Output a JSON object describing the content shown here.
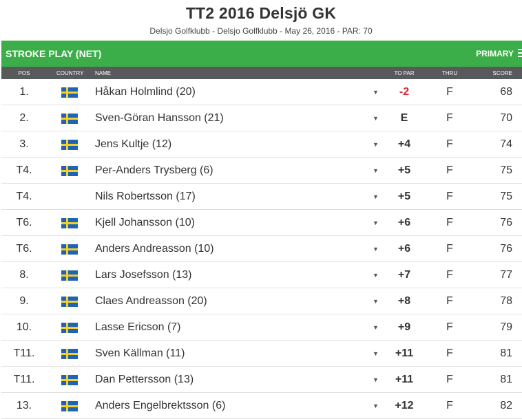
{
  "header": {
    "title": "TT2 2016 Delsjö GK",
    "subtitle": "Delsjo Golfklubb - Delsjo Golfklubb - May 26, 2016 - PAR: 70"
  },
  "bar": {
    "left_label": "STROKE PLAY (NET)",
    "right_label": "PRIMARY",
    "color": "#3cae49"
  },
  "columns": {
    "pos": "POS",
    "country": "COUNTRY",
    "name": "NAME",
    "topar": "TO PAR",
    "thru": "THRU",
    "score": "SCORE"
  },
  "rows": [
    {
      "pos": "1.",
      "flag": true,
      "name": "Håkan Holmlind (20)",
      "topar": "-2",
      "thru": "F",
      "score": "68"
    },
    {
      "pos": "2.",
      "flag": true,
      "name": "Sven-Göran Hansson (21)",
      "topar": "E",
      "thru": "F",
      "score": "70"
    },
    {
      "pos": "3.",
      "flag": true,
      "name": "Jens Kultje (12)",
      "topar": "+4",
      "thru": "F",
      "score": "74"
    },
    {
      "pos": "T4.",
      "flag": true,
      "name": "Per-Anders Trysberg (6)",
      "topar": "+5",
      "thru": "F",
      "score": "75"
    },
    {
      "pos": "T4.",
      "flag": false,
      "name": "Nils Robertsson (17)",
      "topar": "+5",
      "thru": "F",
      "score": "75"
    },
    {
      "pos": "T6.",
      "flag": true,
      "name": "Kjell Johansson (10)",
      "topar": "+6",
      "thru": "F",
      "score": "76"
    },
    {
      "pos": "T6.",
      "flag": true,
      "name": "Anders Andreasson (10)",
      "topar": "+6",
      "thru": "F",
      "score": "76"
    },
    {
      "pos": "8.",
      "flag": true,
      "name": "Lars Josefsson (13)",
      "topar": "+7",
      "thru": "F",
      "score": "77"
    },
    {
      "pos": "9.",
      "flag": true,
      "name": "Claes Andreasson (20)",
      "topar": "+8",
      "thru": "F",
      "score": "78"
    },
    {
      "pos": "10.",
      "flag": true,
      "name": "Lasse Ericson (7)",
      "topar": "+9",
      "thru": "F",
      "score": "79"
    },
    {
      "pos": "T11.",
      "flag": true,
      "name": "Sven Källman (11)",
      "topar": "+11",
      "thru": "F",
      "score": "81"
    },
    {
      "pos": "T11.",
      "flag": true,
      "name": "Dan Pettersson (13)",
      "topar": "+11",
      "thru": "F",
      "score": "81"
    },
    {
      "pos": "13.",
      "flag": true,
      "name": "Anders Engelbrektsson (6)",
      "topar": "+12",
      "thru": "F",
      "score": "82"
    }
  ],
  "caret_glyph": "▼",
  "icons": {
    "flag": "sweden-flag-icon",
    "expand": "caret-down-icon",
    "menu": "menu-icon"
  }
}
